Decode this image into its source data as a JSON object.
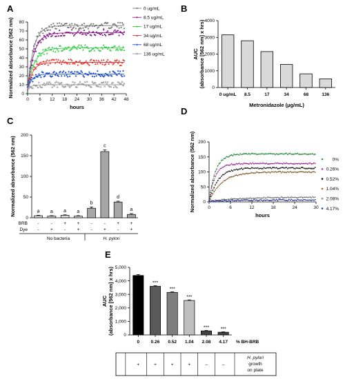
{
  "chart_data": [
    {
      "panel": "A",
      "type": "scatter",
      "xlabel": "hours",
      "ylabel": "Normalized absorbance (562 nm)",
      "xlim": [
        0,
        48
      ],
      "ylim": [
        0,
        80
      ],
      "xticks": [
        0,
        6,
        12,
        18,
        24,
        30,
        36,
        42,
        48
      ],
      "yticks": [
        0,
        10,
        20,
        30,
        40,
        50,
        60,
        70,
        80
      ],
      "grid": false,
      "legend": "right",
      "series": [
        {
          "name": "0 ug/mL",
          "color": "#777777",
          "marker": "circle",
          "plateau": 76,
          "k": 0.35
        },
        {
          "name": "8.5 ug/mL",
          "color": "#8b1a8b",
          "marker": "circle",
          "plateau": 68,
          "k": 0.32
        },
        {
          "name": "17 ug/mL",
          "color": "#2ecc40",
          "marker": "triangle",
          "plateau": 51,
          "k": 0.3
        },
        {
          "name": "34 ug/mL",
          "color": "#e8312a",
          "marker": "triangle",
          "plateau": 35,
          "k": 0.4
        },
        {
          "name": "68 ug/mL",
          "color": "#1d4fd6",
          "marker": "diamond",
          "plateau": 22,
          "k": 0.45
        },
        {
          "name": "136 ug/mL",
          "color": "#999999",
          "marker": "cross",
          "plateau": 10,
          "k": 0.6
        }
      ]
    },
    {
      "panel": "B",
      "type": "bar",
      "xlabel": "Metronidazole (µg/mL)",
      "ylabel": "AUC (absorbance [562 nm] x hrs)",
      "categories": [
        "0 ug/mL",
        "8.5",
        "17",
        "34",
        "68",
        "136"
      ],
      "values": [
        3150,
        2800,
        2150,
        1380,
        820,
        520
      ],
      "ylim": [
        0,
        4000
      ],
      "yticks": [
        0,
        1000,
        2000,
        3000,
        4000
      ],
      "bar_color": "#d9d9d9"
    },
    {
      "panel": "C",
      "type": "bar",
      "ylabel": "Normalized absorbance (562 nm)",
      "ylim": [
        0,
        200
      ],
      "yticks": [
        0,
        50,
        100,
        150,
        200
      ],
      "values": [
        5,
        4,
        6,
        4,
        23,
        160,
        38,
        8
      ],
      "errors": [
        1,
        1,
        1,
        1,
        3,
        4,
        2,
        2
      ],
      "labels": [
        "a",
        "a",
        "a",
        "a",
        "b",
        "c",
        "d",
        "a"
      ],
      "colors": [
        "#d9d9d9",
        "#d9d9d9",
        "#d9d9d9",
        "#d9d9d9",
        "#a6a6a6",
        "#a6a6a6",
        "#a6a6a6",
        "#a6a6a6"
      ],
      "row_labels": [
        "BRB",
        "Dye"
      ],
      "brb": [
        "-",
        "-",
        "+",
        "+",
        "-",
        "-",
        "+",
        "+"
      ],
      "dye": [
        "-",
        "+",
        "-",
        "+",
        "-",
        "+",
        "-",
        "+"
      ],
      "groups": [
        "No bacteria",
        "H. pylori"
      ]
    },
    {
      "panel": "D",
      "type": "scatter",
      "xlabel": "hours",
      "ylabel": "Normalized absorbance (562 nm)",
      "xlim": [
        0,
        30
      ],
      "ylim": [
        0,
        200
      ],
      "xticks": [
        0,
        6,
        12,
        18,
        24,
        30
      ],
      "yticks": [
        0,
        50,
        100,
        150,
        200
      ],
      "legend": "right",
      "series": [
        {
          "name": "0%",
          "color": "#1f9e3a",
          "plateau": 160,
          "k": 0.55
        },
        {
          "name": "0.26%",
          "color": "#c026b8",
          "plateau": 128,
          "k": 0.6
        },
        {
          "name": "0.52%",
          "color": "#111111",
          "plateau": 113,
          "k": 0.4
        },
        {
          "name": "1.04%",
          "color": "#a06a2c",
          "plateau": 100,
          "k": 0.28
        },
        {
          "name": "2.08%",
          "color": "#8c8c8c",
          "plateau": 16,
          "k": 0.12
        },
        {
          "name": "4.17%",
          "color": "#2437b8",
          "plateau": 7,
          "k": 0.1
        }
      ]
    },
    {
      "panel": "E",
      "type": "bar",
      "xlabel": "% BH-BRB",
      "ylabel": "AUC (absorbance [562 nm] x hrs)",
      "categories": [
        "0",
        "0.26",
        "0.52",
        "1.04",
        "2.08",
        "4.17"
      ],
      "values": [
        4400,
        3600,
        3150,
        2550,
        300,
        200
      ],
      "errors": [
        60,
        40,
        40,
        40,
        30,
        30
      ],
      "labels": [
        "",
        "***",
        "***",
        "***",
        "***",
        "***"
      ],
      "colors": [
        "#000000",
        "#595959",
        "#7f7f7f",
        "#bfbfbf",
        "#404040",
        "#404040"
      ],
      "ylim": [
        0,
        5000
      ],
      "yticks": [
        "0",
        "1,000",
        "2,000",
        "3,000",
        "4,000",
        "5,000"
      ],
      "growth_row": [
        "+",
        "+",
        "+",
        "+",
        "–",
        "–"
      ],
      "growth_label": [
        "H. pylori",
        "growth",
        "on plate"
      ]
    }
  ]
}
